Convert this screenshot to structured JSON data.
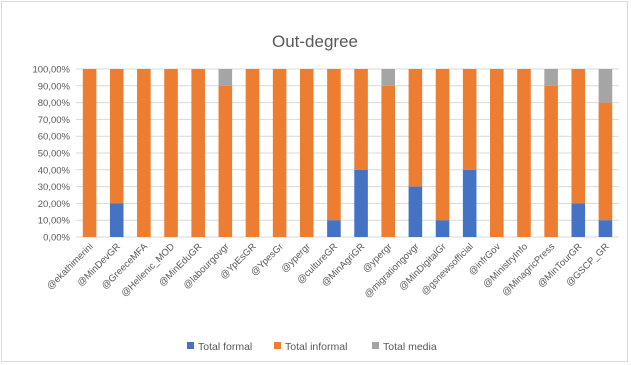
{
  "chart_data": {
    "type": "bar",
    "stacked": true,
    "title": "Out-degree",
    "xlabel": "",
    "ylabel": "",
    "ylim": [
      0,
      100
    ],
    "yticks": [
      "0,00%",
      "10,00%",
      "20,00%",
      "30,00%",
      "40,00%",
      "50,00%",
      "60,00%",
      "70,00%",
      "80,00%",
      "90,00%",
      "100,00%"
    ],
    "grid": true,
    "legend_position": "bottom",
    "categories": [
      "@ekathimerini",
      "@MinDevGR",
      "@GreeceMFA",
      "@Hellenic_MOD",
      "@MinEduGR",
      "@labourgovgr",
      "@YpEsGR",
      "@YpesGr",
      "@ypergr",
      "@cultureGR",
      "@MinAgriGR",
      "@ypergr",
      "@migrationgovgr",
      "@MinDigitalGr",
      "@gsnewsofficial",
      "@infrGov",
      "@MinistryInfo",
      "@MinagricPress",
      "@MinTourGR",
      "@GSCP_GR"
    ],
    "series": [
      {
        "name": "Total formal",
        "color": "#4472c4",
        "values": [
          0,
          20,
          0,
          0,
          0,
          0,
          0,
          0,
          0,
          10,
          40,
          0,
          30,
          10,
          40,
          0,
          0,
          0,
          20,
          10
        ]
      },
      {
        "name": "Total informal",
        "color": "#ed7d31",
        "values": [
          100,
          80,
          100,
          100,
          100,
          90,
          100,
          100,
          100,
          90,
          60,
          90,
          70,
          90,
          60,
          100,
          100,
          90,
          80,
          70
        ]
      },
      {
        "name": "Total media",
        "color": "#a5a5a5",
        "values": [
          0,
          0,
          0,
          0,
          0,
          10,
          0,
          0,
          0,
          0,
          0,
          10,
          0,
          0,
          0,
          0,
          0,
          10,
          0,
          20
        ]
      }
    ]
  }
}
